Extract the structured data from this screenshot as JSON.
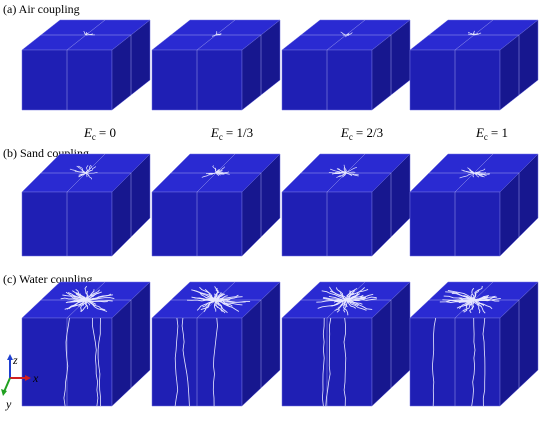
{
  "rows": [
    {
      "label": "(a) Air coupling"
    },
    {
      "label": "(b) Sand coupling"
    },
    {
      "label": "(c) Water coupling"
    }
  ],
  "columns": [
    {
      "symbol": "E",
      "subscript": "c",
      "value": "= 0"
    },
    {
      "symbol": "E",
      "subscript": "c",
      "value": "= 1/3"
    },
    {
      "symbol": "E",
      "subscript": "c",
      "value": "= 2/3"
    },
    {
      "symbol": "E",
      "subscript": "c",
      "value": "= 1"
    }
  ],
  "axes": {
    "z": "z",
    "x": "x",
    "y": "y"
  }
}
